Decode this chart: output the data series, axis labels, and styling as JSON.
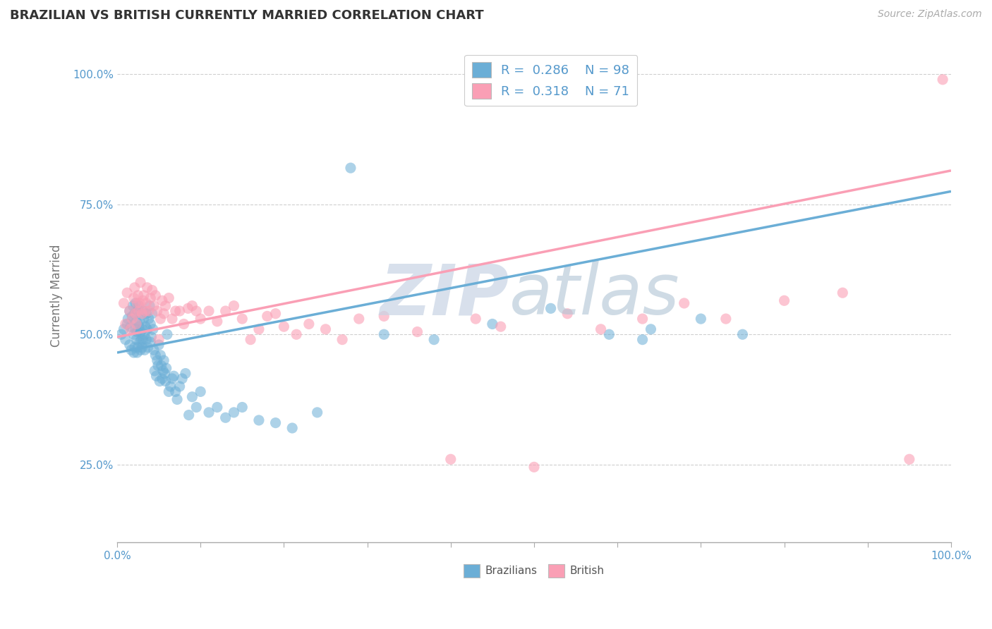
{
  "title": "BRAZILIAN VS BRITISH CURRENTLY MARRIED CORRELATION CHART",
  "source": "Source: ZipAtlas.com",
  "ylabel": "Currently Married",
  "xlim": [
    0.0,
    1.0
  ],
  "ylim": [
    0.1,
    1.05
  ],
  "x_ticks": [
    0.0,
    0.1,
    0.2,
    0.3,
    0.4,
    0.5,
    0.6,
    0.7,
    0.8,
    0.9,
    1.0
  ],
  "y_ticks": [
    0.25,
    0.5,
    0.75,
    1.0
  ],
  "brazil_color": "#6baed6",
  "british_color": "#fa9fb5",
  "brazil_R": 0.286,
  "brazil_N": 98,
  "british_R": 0.318,
  "british_N": 71,
  "legend_label_brazil": "Brazilians",
  "legend_label_british": "British",
  "axis_color": "#5599cc",
  "grid_color": "#bbbbbb",
  "brazil_trend_x0": 0.0,
  "brazil_trend_y0": 0.465,
  "brazil_trend_x1": 1.0,
  "brazil_trend_y1": 0.775,
  "british_trend_x0": 0.0,
  "british_trend_y0": 0.495,
  "british_trend_x1": 1.0,
  "british_trend_y1": 0.815,
  "brazil_scatter_x": [
    0.005,
    0.008,
    0.01,
    0.012,
    0.013,
    0.015,
    0.015,
    0.016,
    0.017,
    0.018,
    0.019,
    0.02,
    0.02,
    0.021,
    0.021,
    0.022,
    0.022,
    0.023,
    0.023,
    0.024,
    0.024,
    0.025,
    0.025,
    0.026,
    0.026,
    0.027,
    0.027,
    0.028,
    0.028,
    0.029,
    0.03,
    0.03,
    0.031,
    0.031,
    0.032,
    0.033,
    0.033,
    0.034,
    0.035,
    0.035,
    0.036,
    0.037,
    0.038,
    0.039,
    0.04,
    0.04,
    0.041,
    0.042,
    0.043,
    0.044,
    0.045,
    0.046,
    0.047,
    0.048,
    0.049,
    0.05,
    0.051,
    0.052,
    0.053,
    0.054,
    0.055,
    0.056,
    0.057,
    0.058,
    0.059,
    0.06,
    0.062,
    0.064,
    0.066,
    0.068,
    0.07,
    0.072,
    0.075,
    0.078,
    0.082,
    0.086,
    0.09,
    0.095,
    0.1,
    0.11,
    0.12,
    0.13,
    0.14,
    0.15,
    0.17,
    0.19,
    0.21,
    0.24,
    0.28,
    0.32,
    0.38,
    0.45,
    0.52,
    0.59,
    0.63,
    0.64,
    0.7,
    0.75
  ],
  "brazil_scatter_y": [
    0.5,
    0.51,
    0.49,
    0.52,
    0.53,
    0.48,
    0.545,
    0.515,
    0.47,
    0.535,
    0.555,
    0.465,
    0.5,
    0.54,
    0.475,
    0.51,
    0.56,
    0.49,
    0.525,
    0.465,
    0.505,
    0.545,
    0.475,
    0.515,
    0.555,
    0.485,
    0.525,
    0.505,
    0.47,
    0.49,
    0.475,
    0.51,
    0.545,
    0.49,
    0.53,
    0.5,
    0.47,
    0.515,
    0.49,
    0.54,
    0.51,
    0.475,
    0.53,
    0.555,
    0.485,
    0.52,
    0.495,
    0.54,
    0.51,
    0.47,
    0.43,
    0.46,
    0.42,
    0.45,
    0.44,
    0.48,
    0.41,
    0.46,
    0.44,
    0.415,
    0.43,
    0.45,
    0.425,
    0.41,
    0.435,
    0.5,
    0.39,
    0.4,
    0.415,
    0.42,
    0.39,
    0.375,
    0.4,
    0.415,
    0.425,
    0.345,
    0.38,
    0.36,
    0.39,
    0.35,
    0.36,
    0.34,
    0.35,
    0.36,
    0.335,
    0.33,
    0.32,
    0.35,
    0.82,
    0.5,
    0.49,
    0.52,
    0.55,
    0.5,
    0.49,
    0.51,
    0.53,
    0.5
  ],
  "british_scatter_x": [
    0.008,
    0.01,
    0.012,
    0.015,
    0.016,
    0.018,
    0.02,
    0.021,
    0.022,
    0.023,
    0.024,
    0.025,
    0.026,
    0.027,
    0.028,
    0.03,
    0.031,
    0.032,
    0.034,
    0.035,
    0.036,
    0.038,
    0.04,
    0.042,
    0.044,
    0.046,
    0.048,
    0.05,
    0.052,
    0.054,
    0.056,
    0.058,
    0.062,
    0.066,
    0.07,
    0.075,
    0.08,
    0.085,
    0.09,
    0.095,
    0.1,
    0.11,
    0.12,
    0.13,
    0.14,
    0.15,
    0.16,
    0.17,
    0.18,
    0.19,
    0.2,
    0.215,
    0.23,
    0.25,
    0.27,
    0.29,
    0.32,
    0.36,
    0.4,
    0.43,
    0.46,
    0.5,
    0.54,
    0.58,
    0.63,
    0.68,
    0.73,
    0.8,
    0.87,
    0.95,
    0.99
  ],
  "british_scatter_y": [
    0.56,
    0.52,
    0.58,
    0.545,
    0.51,
    0.53,
    0.57,
    0.59,
    0.54,
    0.52,
    0.56,
    0.575,
    0.545,
    0.56,
    0.6,
    0.54,
    0.565,
    0.575,
    0.545,
    0.56,
    0.59,
    0.545,
    0.57,
    0.585,
    0.555,
    0.575,
    0.545,
    0.49,
    0.53,
    0.565,
    0.54,
    0.555,
    0.57,
    0.53,
    0.545,
    0.545,
    0.52,
    0.55,
    0.555,
    0.545,
    0.53,
    0.545,
    0.525,
    0.545,
    0.555,
    0.53,
    0.49,
    0.51,
    0.535,
    0.54,
    0.515,
    0.5,
    0.52,
    0.51,
    0.49,
    0.53,
    0.535,
    0.505,
    0.26,
    0.53,
    0.515,
    0.245,
    0.54,
    0.51,
    0.53,
    0.56,
    0.53,
    0.565,
    0.58,
    0.26,
    0.99
  ]
}
